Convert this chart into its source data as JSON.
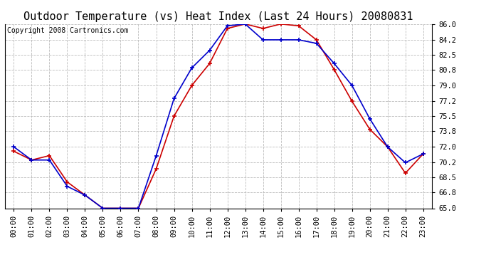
{
  "title": "Outdoor Temperature (vs) Heat Index (Last 24 Hours) 20080831",
  "copyright": "Copyright 2008 Cartronics.com",
  "x_labels": [
    "00:00",
    "01:00",
    "02:00",
    "03:00",
    "04:00",
    "05:00",
    "06:00",
    "07:00",
    "08:00",
    "09:00",
    "10:00",
    "11:00",
    "12:00",
    "13:00",
    "14:00",
    "15:00",
    "16:00",
    "17:00",
    "18:00",
    "19:00",
    "20:00",
    "21:00",
    "22:00",
    "23:00"
  ],
  "temp_data": [
    71.5,
    70.5,
    71.0,
    68.0,
    66.5,
    65.0,
    65.0,
    65.0,
    69.5,
    75.5,
    79.0,
    81.5,
    85.5,
    86.0,
    85.5,
    86.0,
    85.8,
    84.2,
    80.8,
    77.2,
    74.0,
    72.0,
    69.0,
    71.2
  ],
  "heat_data": [
    72.0,
    70.5,
    70.5,
    67.5,
    66.5,
    65.0,
    65.0,
    65.0,
    71.0,
    77.5,
    81.0,
    83.0,
    85.8,
    86.0,
    84.2,
    84.2,
    84.2,
    83.8,
    81.5,
    79.0,
    75.2,
    72.0,
    70.2,
    71.2
  ],
  "temp_color": "#cc0000",
  "heat_color": "#0000cc",
  "bg_color": "#ffffff",
  "plot_bg": "#ffffff",
  "grid_color": "#bbbbbb",
  "ylim": [
    65.0,
    86.0
  ],
  "yticks": [
    65.0,
    66.8,
    68.5,
    70.2,
    72.0,
    73.8,
    75.5,
    77.2,
    79.0,
    80.8,
    82.5,
    84.2,
    86.0
  ],
  "title_fontsize": 11,
  "copyright_fontsize": 7,
  "tick_fontsize": 7.5
}
